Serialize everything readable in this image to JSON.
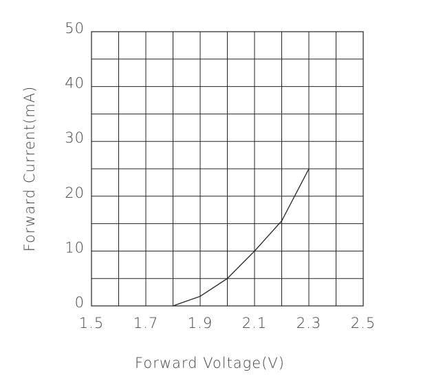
{
  "chart_data": {
    "type": "line",
    "x_label": "Forward Voltage(V)",
    "y_label": "Forward Current(mA)",
    "x": [
      1.8,
      1.9,
      2.0,
      2.1,
      2.2,
      2.3
    ],
    "values": [
      0,
      1.75,
      5,
      10,
      15.5,
      25
    ],
    "color": "#222222",
    "xlim": [
      1.5,
      2.5
    ],
    "ylim": [
      0,
      50
    ],
    "xticks": [
      1.5,
      1.7,
      1.9,
      2.1,
      2.3,
      2.5
    ],
    "yticks": [
      0,
      10,
      20,
      30,
      40,
      50
    ],
    "xgrid": [
      1.6,
      1.8,
      2.0,
      2.2,
      2.4
    ],
    "ygrid": [
      5,
      15,
      25,
      35,
      45
    ],
    "grid": true
  }
}
